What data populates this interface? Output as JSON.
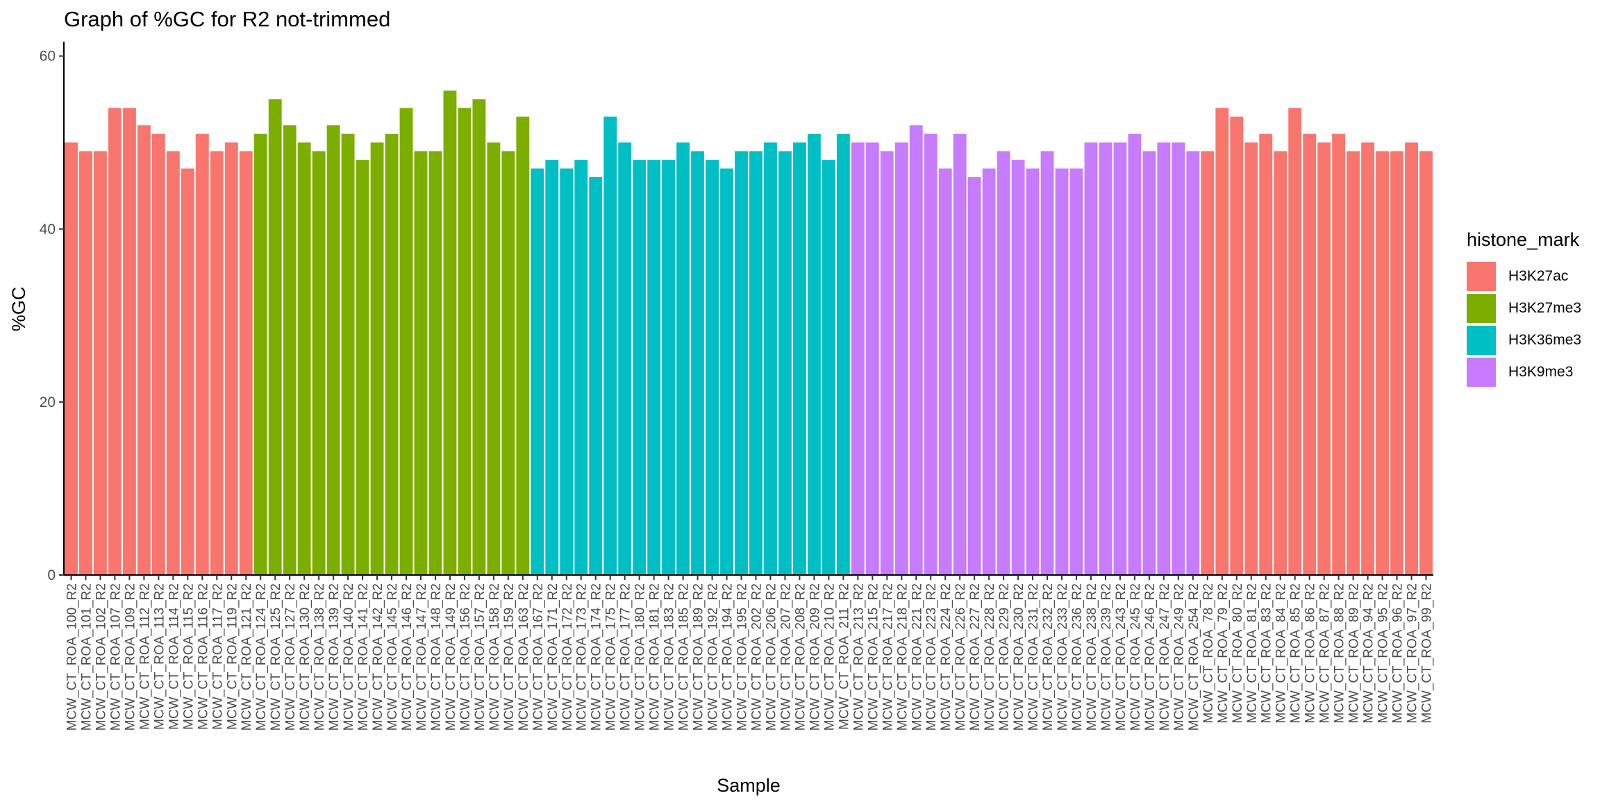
{
  "chart_data": {
    "type": "bar",
    "title": "Graph of %GC for R2 not-trimmed",
    "xlabel": "Sample",
    "ylabel": "%GC",
    "ylim": [
      0,
      61.5
    ],
    "yticks": [
      0,
      20,
      40,
      60
    ],
    "grid": false,
    "legend": {
      "title": "histone_mark",
      "placement": "right"
    },
    "series_colors": {
      "H3K27ac": "#F8766D",
      "H3K27me3": "#7CAE00",
      "H3K36me3": "#00BFC4",
      "H3K9me3": "#C77CFF"
    },
    "legend_entries": [
      "H3K27ac",
      "H3K27me3",
      "H3K36me3",
      "H3K9me3"
    ],
    "categories": [
      "MCW_CT_ROA_100_R2",
      "MCW_CT_ROA_101_R2",
      "MCW_CT_ROA_102_R2",
      "MCW_CT_ROA_107_R2",
      "MCW_CT_ROA_109_R2",
      "MCW_CT_ROA_112_R2",
      "MCW_CT_ROA_113_R2",
      "MCW_CT_ROA_114_R2",
      "MCW_CT_ROA_115_R2",
      "MCW_CT_ROA_116_R2",
      "MCW_CT_ROA_117_R2",
      "MCW_CT_ROA_119_R2",
      "MCW_CT_ROA_121_R2",
      "MCW_CT_ROA_124_R2",
      "MCW_CT_ROA_125_R2",
      "MCW_CT_ROA_127_R2",
      "MCW_CT_ROA_130_R2",
      "MCW_CT_ROA_138_R2",
      "MCW_CT_ROA_139_R2",
      "MCW_CT_ROA_140_R2",
      "MCW_CT_ROA_141_R2",
      "MCW_CT_ROA_142_R2",
      "MCW_CT_ROA_145_R2",
      "MCW_CT_ROA_146_R2",
      "MCW_CT_ROA_147_R2",
      "MCW_CT_ROA_148_R2",
      "MCW_CT_ROA_149_R2",
      "MCW_CT_ROA_156_R2",
      "MCW_CT_ROA_157_R2",
      "MCW_CT_ROA_158_R2",
      "MCW_CT_ROA_159_R2",
      "MCW_CT_ROA_163_R2",
      "MCW_CT_ROA_167_R2",
      "MCW_CT_ROA_171_R2",
      "MCW_CT_ROA_172_R2",
      "MCW_CT_ROA_173_R2",
      "MCW_CT_ROA_174_R2",
      "MCW_CT_ROA_175_R2",
      "MCW_CT_ROA_177_R2",
      "MCW_CT_ROA_180_R2",
      "MCW_CT_ROA_181_R2",
      "MCW_CT_ROA_183_R2",
      "MCW_CT_ROA_185_R2",
      "MCW_CT_ROA_189_R2",
      "MCW_CT_ROA_192_R2",
      "MCW_CT_ROA_194_R2",
      "MCW_CT_ROA_195_R2",
      "MCW_CT_ROA_202_R2",
      "MCW_CT_ROA_206_R2",
      "MCW_CT_ROA_207_R2",
      "MCW_CT_ROA_208_R2",
      "MCW_CT_ROA_209_R2",
      "MCW_CT_ROA_210_R2",
      "MCW_CT_ROA_211_R2",
      "MCW_CT_ROA_213_R2",
      "MCW_CT_ROA_215_R2",
      "MCW_CT_ROA_217_R2",
      "MCW_CT_ROA_218_R2",
      "MCW_CT_ROA_221_R2",
      "MCW_CT_ROA_223_R2",
      "MCW_CT_ROA_224_R2",
      "MCW_CT_ROA_226_R2",
      "MCW_CT_ROA_227_R2",
      "MCW_CT_ROA_228_R2",
      "MCW_CT_ROA_229_R2",
      "MCW_CT_ROA_230_R2",
      "MCW_CT_ROA_231_R2",
      "MCW_CT_ROA_232_R2",
      "MCW_CT_ROA_233_R2",
      "MCW_CT_ROA_236_R2",
      "MCW_CT_ROA_238_R2",
      "MCW_CT_ROA_239_R2",
      "MCW_CT_ROA_243_R2",
      "MCW_CT_ROA_245_R2",
      "MCW_CT_ROA_246_R2",
      "MCW_CT_ROA_247_R2",
      "MCW_CT_ROA_249_R2",
      "MCW_CT_ROA_254_R2",
      "MCW_CT_ROA_78_R2",
      "MCW_CT_ROA_79_R2",
      "MCW_CT_ROA_80_R2",
      "MCW_CT_ROA_81_R2",
      "MCW_CT_ROA_83_R2",
      "MCW_CT_ROA_84_R2",
      "MCW_CT_ROA_85_R2",
      "MCW_CT_ROA_86_R2",
      "MCW_CT_ROA_87_R2",
      "MCW_CT_ROA_88_R2",
      "MCW_CT_ROA_89_R2",
      "MCW_CT_ROA_94_R2",
      "MCW_CT_ROA_95_R2",
      "MCW_CT_ROA_96_R2",
      "MCW_CT_ROA_97_R2",
      "MCW_CT_ROA_99_R2"
    ],
    "values": [
      50,
      49,
      49,
      54,
      54,
      52,
      51,
      49,
      47,
      51,
      49,
      50,
      49,
      51,
      55,
      52,
      50,
      49,
      52,
      51,
      48,
      50,
      51,
      54,
      49,
      49,
      56,
      54,
      55,
      50,
      49,
      53,
      47,
      48,
      47,
      48,
      46,
      53,
      50,
      48,
      48,
      48,
      50,
      49,
      48,
      47,
      49,
      49,
      50,
      49,
      50,
      51,
      48,
      51,
      50,
      50,
      49,
      50,
      52,
      51,
      47,
      51,
      46,
      47,
      49,
      48,
      47,
      49,
      47,
      47,
      50,
      50,
      50,
      51,
      49,
      50,
      50,
      49,
      49,
      54,
      53,
      50,
      51,
      49,
      54,
      51,
      50,
      51,
      49,
      50,
      49,
      49,
      50,
      49
    ],
    "groups": [
      "H3K27ac",
      "H3K27ac",
      "H3K27ac",
      "H3K27ac",
      "H3K27ac",
      "H3K27ac",
      "H3K27ac",
      "H3K27ac",
      "H3K27ac",
      "H3K27ac",
      "H3K27ac",
      "H3K27ac",
      "H3K27ac",
      "H3K27me3",
      "H3K27me3",
      "H3K27me3",
      "H3K27me3",
      "H3K27me3",
      "H3K27me3",
      "H3K27me3",
      "H3K27me3",
      "H3K27me3",
      "H3K27me3",
      "H3K27me3",
      "H3K27me3",
      "H3K27me3",
      "H3K27me3",
      "H3K27me3",
      "H3K27me3",
      "H3K27me3",
      "H3K27me3",
      "H3K27me3",
      "H3K36me3",
      "H3K36me3",
      "H3K36me3",
      "H3K36me3",
      "H3K36me3",
      "H3K36me3",
      "H3K36me3",
      "H3K36me3",
      "H3K36me3",
      "H3K36me3",
      "H3K36me3",
      "H3K36me3",
      "H3K36me3",
      "H3K36me3",
      "H3K36me3",
      "H3K36me3",
      "H3K36me3",
      "H3K36me3",
      "H3K36me3",
      "H3K36me3",
      "H3K36me3",
      "H3K36me3",
      "H3K9me3",
      "H3K9me3",
      "H3K9me3",
      "H3K9me3",
      "H3K9me3",
      "H3K9me3",
      "H3K9me3",
      "H3K9me3",
      "H3K9me3",
      "H3K9me3",
      "H3K9me3",
      "H3K9me3",
      "H3K9me3",
      "H3K9me3",
      "H3K9me3",
      "H3K9me3",
      "H3K9me3",
      "H3K9me3",
      "H3K9me3",
      "H3K9me3",
      "H3K9me3",
      "H3K9me3",
      "H3K9me3",
      "H3K9me3",
      "H3K27ac",
      "H3K27ac",
      "H3K27ac",
      "H3K27ac",
      "H3K27ac",
      "H3K27ac",
      "H3K27ac",
      "H3K27ac",
      "H3K27ac",
      "H3K27ac",
      "H3K27ac",
      "H3K27ac",
      "H3K27ac",
      "H3K27ac",
      "H3K27ac",
      "H3K27ac"
    ]
  }
}
